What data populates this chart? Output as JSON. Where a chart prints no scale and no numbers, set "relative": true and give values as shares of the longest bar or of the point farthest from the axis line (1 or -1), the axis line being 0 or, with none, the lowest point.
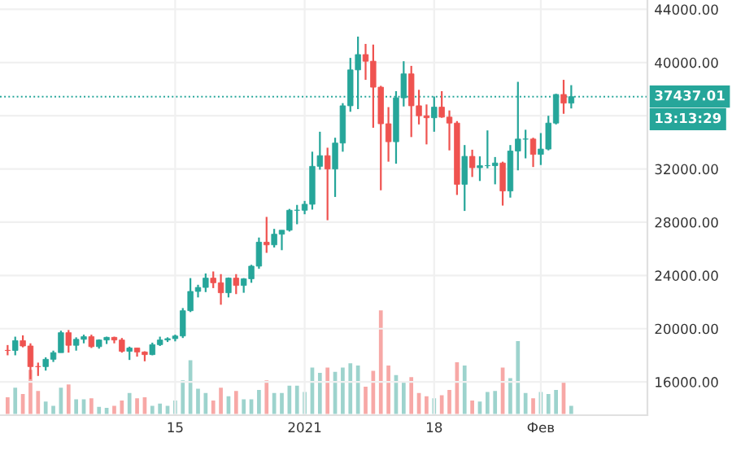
{
  "chart_data": [
    {
      "type": "candlestick",
      "x": [
        "2020-11-23",
        "2020-11-24",
        "2020-11-25",
        "2020-11-26",
        "2020-11-27",
        "2020-11-28",
        "2020-11-29",
        "2020-11-30",
        "2020-12-01",
        "2020-12-02",
        "2020-12-03",
        "2020-12-04",
        "2020-12-05",
        "2020-12-06",
        "2020-12-07",
        "2020-12-08",
        "2020-12-09",
        "2020-12-10",
        "2020-12-11",
        "2020-12-12",
        "2020-12-13",
        "2020-12-14",
        "2020-12-15",
        "2020-12-16",
        "2020-12-17",
        "2020-12-18",
        "2020-12-19",
        "2020-12-20",
        "2020-12-21",
        "2020-12-22",
        "2020-12-23",
        "2020-12-24",
        "2020-12-25",
        "2020-12-26",
        "2020-12-27",
        "2020-12-28",
        "2020-12-29",
        "2020-12-30",
        "2020-12-31",
        "2021-01-01",
        "2021-01-02",
        "2021-01-03",
        "2021-01-04",
        "2021-01-05",
        "2021-01-06",
        "2021-01-07",
        "2021-01-08",
        "2021-01-09",
        "2021-01-10",
        "2021-01-11",
        "2021-01-12",
        "2021-01-13",
        "2021-01-14",
        "2021-01-15",
        "2021-01-16",
        "2021-01-17",
        "2021-01-18",
        "2021-01-19",
        "2021-01-20",
        "2021-01-21",
        "2021-01-22",
        "2021-01-23",
        "2021-01-24",
        "2021-01-25",
        "2021-01-26",
        "2021-01-27",
        "2021-01-28",
        "2021-01-29",
        "2021-01-30",
        "2021-01-31",
        "2021-02-01",
        "2021-02-02",
        "2021-02-03",
        "2021-02-04",
        "2021-02-05"
      ],
      "ohlc": [
        [
          18370,
          18770,
          18000,
          18365
        ],
        [
          18365,
          19400,
          18000,
          19100
        ],
        [
          19100,
          19500,
          18600,
          18700
        ],
        [
          18700,
          18900,
          16200,
          17150
        ],
        [
          17150,
          17450,
          16450,
          17150
        ],
        [
          17150,
          17850,
          16850,
          17700
        ],
        [
          17700,
          18350,
          17500,
          18200
        ],
        [
          18200,
          19850,
          18200,
          19700
        ],
        [
          19700,
          19900,
          18200,
          18750
        ],
        [
          18750,
          19350,
          18350,
          19200
        ],
        [
          19200,
          19550,
          18900,
          19400
        ],
        [
          19400,
          19550,
          18550,
          18650
        ],
        [
          18650,
          19200,
          18500,
          19150
        ],
        [
          19150,
          19400,
          18850,
          19350
        ],
        [
          19350,
          19400,
          18900,
          19150
        ],
        [
          19150,
          19300,
          18200,
          18300
        ],
        [
          18300,
          18650,
          17650,
          18550
        ],
        [
          18550,
          18550,
          17900,
          18250
        ],
        [
          18250,
          18300,
          17550,
          18050
        ],
        [
          18050,
          18950,
          18000,
          18800
        ],
        [
          18800,
          19400,
          18700,
          19150
        ],
        [
          19150,
          19350,
          19000,
          19250
        ],
        [
          19250,
          19550,
          19050,
          19450
        ],
        [
          19450,
          21550,
          19300,
          21350
        ],
        [
          21350,
          23800,
          21250,
          22800
        ],
        [
          22800,
          23300,
          22350,
          23100
        ],
        [
          23100,
          24150,
          22750,
          23800
        ],
        [
          23800,
          24300,
          23050,
          23450
        ],
        [
          23450,
          24100,
          21800,
          22700
        ],
        [
          22700,
          23850,
          22350,
          23800
        ],
        [
          23800,
          24100,
          22600,
          23250
        ],
        [
          23250,
          23800,
          22700,
          23750
        ],
        [
          23750,
          24800,
          23450,
          24700
        ],
        [
          24700,
          26850,
          24500,
          26500
        ],
        [
          26500,
          28400,
          25700,
          26300
        ],
        [
          26300,
          27500,
          26100,
          27100
        ],
        [
          27100,
          27400,
          25900,
          27400
        ],
        [
          27400,
          29000,
          27300,
          28900
        ],
        [
          28900,
          29300,
          27850,
          28900
        ],
        [
          28900,
          29600,
          28600,
          29350
        ],
        [
          29350,
          33300,
          28950,
          32200
        ],
        [
          32200,
          34800,
          31950,
          33000
        ],
        [
          33000,
          33600,
          28150,
          32000
        ],
        [
          32000,
          34350,
          29900,
          33950
        ],
        [
          33950,
          36950,
          33300,
          36750
        ],
        [
          36750,
          40350,
          36300,
          39450
        ],
        [
          39450,
          41950,
          36500,
          40600
        ],
        [
          40600,
          41400,
          38700,
          40100
        ],
        [
          40100,
          41350,
          35100,
          38150
        ],
        [
          38150,
          38250,
          30400,
          35400
        ],
        [
          35400,
          36650,
          32550,
          34050
        ],
        [
          34050,
          37850,
          32400,
          37350
        ],
        [
          37350,
          40100,
          36700,
          39150
        ],
        [
          39150,
          39750,
          34400,
          36750
        ],
        [
          36750,
          37950,
          35350,
          36000
        ],
        [
          36000,
          36850,
          33850,
          35850
        ],
        [
          35850,
          37450,
          34800,
          36650
        ],
        [
          36650,
          37850,
          35850,
          35900
        ],
        [
          35900,
          36400,
          33400,
          35450
        ],
        [
          35450,
          35600,
          30050,
          30850
        ],
        [
          30850,
          33800,
          28850,
          32950
        ],
        [
          32950,
          33450,
          31400,
          32100
        ],
        [
          32100,
          32950,
          31100,
          32250
        ],
        [
          32250,
          34900,
          32050,
          32250
        ],
        [
          32250,
          32900,
          30850,
          32450
        ],
        [
          32450,
          32550,
          29250,
          30350
        ],
        [
          30350,
          33800,
          29850,
          33350
        ],
        [
          33350,
          38550,
          31900,
          34250
        ],
        [
          34250,
          34950,
          32800,
          34250
        ],
        [
          34250,
          34350,
          32150,
          33100
        ],
        [
          33100,
          34700,
          32300,
          33500
        ],
        [
          33500,
          36000,
          33400,
          35450
        ],
        [
          35450,
          37650,
          35350,
          37600
        ],
        [
          37600,
          38700,
          36150,
          36950
        ],
        [
          36950,
          38300,
          36550,
          37437.01
        ]
      ],
      "colors": [
        "#ef5350",
        "#26a69a",
        "#ef5350",
        "#ef5350",
        "#ef5350",
        "#26a69a",
        "#26a69a",
        "#26a69a",
        "#ef5350",
        "#26a69a",
        "#26a69a",
        "#ef5350",
        "#26a69a",
        "#26a69a",
        "#ef5350",
        "#ef5350",
        "#26a69a",
        "#ef5350",
        "#ef5350",
        "#26a69a",
        "#26a69a",
        "#26a69a",
        "#26a69a",
        "#26a69a",
        "#26a69a",
        "#26a69a",
        "#26a69a",
        "#ef5350",
        "#ef5350",
        "#26a69a",
        "#ef5350",
        "#26a69a",
        "#26a69a",
        "#26a69a",
        "#ef5350",
        "#26a69a",
        "#26a69a",
        "#26a69a",
        "#26a69a",
        "#26a69a",
        "#26a69a",
        "#26a69a",
        "#ef5350",
        "#26a69a",
        "#26a69a",
        "#26a69a",
        "#26a69a",
        "#ef5350",
        "#ef5350",
        "#ef5350",
        "#ef5350",
        "#26a69a",
        "#26a69a",
        "#ef5350",
        "#ef5350",
        "#ef5350",
        "#26a69a",
        "#ef5350",
        "#ef5350",
        "#ef5350",
        "#26a69a",
        "#ef5350",
        "#26a69a",
        "#26a69a",
        "#26a69a",
        "#ef5350",
        "#26a69a",
        "#26a69a",
        "#26a69a",
        "#ef5350",
        "#26a69a",
        "#26a69a",
        "#26a69a",
        "#ef5350",
        "#26a69a"
      ],
      "xlim": [
        "2020-11-22",
        "2021-02-15"
      ],
      "xticks": [
        {
          "value": "2020-12-15",
          "label": "15"
        },
        {
          "value": "2021-01-01",
          "label": "2021"
        },
        {
          "value": "2021-01-18",
          "label": "18"
        },
        {
          "value": "2021-02-01",
          "label": "Фев"
        }
      ],
      "ylim": [
        13500,
        44700
      ],
      "yticks": [
        {
          "value": 16000,
          "label": "16000.00"
        },
        {
          "value": 20000,
          "label": "20000.00"
        },
        {
          "value": 24000,
          "label": "24000.00"
        },
        {
          "value": 28000,
          "label": "28000.00"
        },
        {
          "value": 32000,
          "label": "32000.00"
        },
        {
          "value": 36000,
          "label": null
        },
        {
          "value": 40000,
          "label": "40000.00"
        },
        {
          "value": 44000,
          "label": "44000.00"
        }
      ],
      "grid": true,
      "ref_lines": [
        {
          "axis": "y",
          "value": 37437.01,
          "label": "37437.01",
          "color": "#26a69a",
          "line_style": "dotted"
        }
      ],
      "annotations": [
        "13:13:29"
      ]
    },
    {
      "type": "bar",
      "relative": true,
      "categories": [
        null,
        null,
        null,
        null,
        null,
        null,
        null,
        null,
        null,
        null,
        null,
        null,
        null,
        null,
        null,
        null,
        null,
        null,
        null,
        null,
        null,
        null,
        null,
        null,
        null,
        null,
        null,
        null,
        null,
        null,
        null,
        null,
        null,
        null,
        null,
        null,
        null,
        null,
        null,
        null,
        null,
        null,
        null,
        null,
        null,
        null,
        null,
        null,
        null,
        null,
        null,
        null,
        null,
        null,
        null,
        null,
        null,
        null,
        null,
        null,
        null,
        null,
        null,
        null,
        null,
        null,
        null,
        null,
        null,
        null,
        null,
        null,
        null,
        null,
        null
      ],
      "values": [
        0.18,
        0.27,
        0.21,
        0.44,
        0.24,
        0.14,
        0.1,
        0.27,
        0.3,
        0.16,
        0.16,
        0.17,
        0.09,
        0.08,
        0.1,
        0.15,
        0.22,
        0.17,
        0.18,
        0.1,
        0.12,
        0.1,
        0.15,
        0.34,
        0.53,
        0.26,
        0.22,
        0.15,
        0.27,
        0.19,
        0.24,
        0.16,
        0.16,
        0.25,
        0.34,
        0.22,
        0.22,
        0.29,
        0.29,
        0.23,
        0.46,
        0.41,
        0.46,
        0.42,
        0.46,
        0.5,
        0.48,
        0.28,
        0.43,
        1.0,
        0.48,
        0.39,
        0.32,
        0.37,
        0.22,
        0.19,
        0.17,
        0.2,
        0.25,
        0.51,
        0.48,
        0.15,
        0.14,
        0.23,
        0.24,
        0.46,
        0.36,
        0.71,
        0.22,
        0.17,
        0.23,
        0.21,
        0.25,
        0.32,
        0.1
      ],
      "colors": [
        "#f7a8a6",
        "#9dd3cd",
        "#f7a8a6",
        "#f7a8a6",
        "#f7a8a6",
        "#9dd3cd",
        "#9dd3cd",
        "#9dd3cd",
        "#f7a8a6",
        "#9dd3cd",
        "#9dd3cd",
        "#f7a8a6",
        "#9dd3cd",
        "#9dd3cd",
        "#f7a8a6",
        "#f7a8a6",
        "#9dd3cd",
        "#f7a8a6",
        "#f7a8a6",
        "#9dd3cd",
        "#9dd3cd",
        "#9dd3cd",
        "#9dd3cd",
        "#9dd3cd",
        "#9dd3cd",
        "#9dd3cd",
        "#9dd3cd",
        "#f7a8a6",
        "#f7a8a6",
        "#9dd3cd",
        "#f7a8a6",
        "#9dd3cd",
        "#9dd3cd",
        "#9dd3cd",
        "#f7a8a6",
        "#9dd3cd",
        "#9dd3cd",
        "#9dd3cd",
        "#9dd3cd",
        "#9dd3cd",
        "#9dd3cd",
        "#9dd3cd",
        "#f7a8a6",
        "#9dd3cd",
        "#9dd3cd",
        "#9dd3cd",
        "#9dd3cd",
        "#f7a8a6",
        "#f7a8a6",
        "#f7a8a6",
        "#f7a8a6",
        "#9dd3cd",
        "#9dd3cd",
        "#f7a8a6",
        "#f7a8a6",
        "#f7a8a6",
        "#9dd3cd",
        "#f7a8a6",
        "#f7a8a6",
        "#f7a8a6",
        "#9dd3cd",
        "#f7a8a6",
        "#9dd3cd",
        "#9dd3cd",
        "#9dd3cd",
        "#f7a8a6",
        "#9dd3cd",
        "#9dd3cd",
        "#9dd3cd",
        "#f7a8a6",
        "#9dd3cd",
        "#9dd3cd",
        "#9dd3cd",
        "#f7a8a6",
        "#9dd3cd"
      ]
    }
  ]
}
